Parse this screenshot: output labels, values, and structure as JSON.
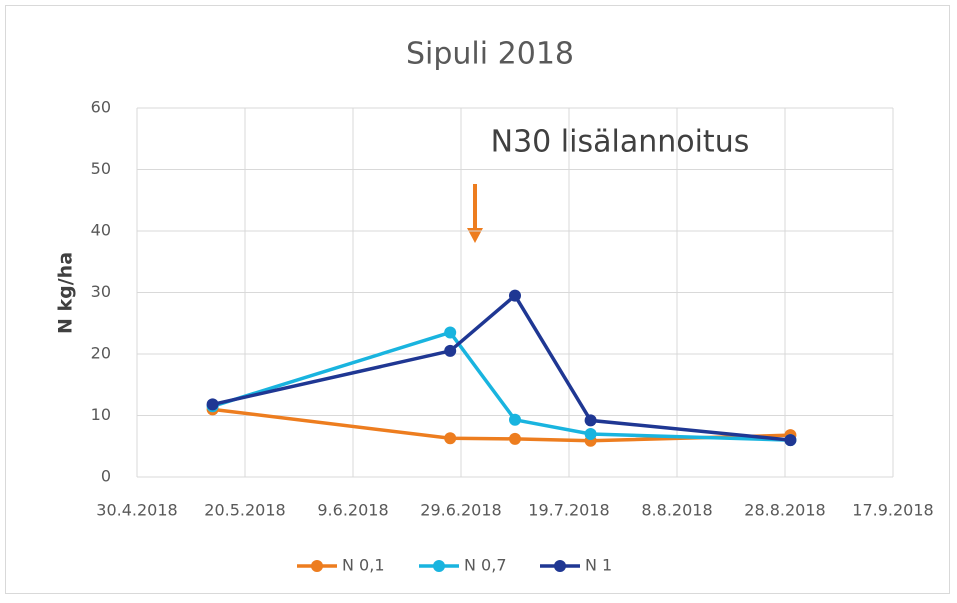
{
  "chart_data": {
    "type": "line",
    "title": "Sipuli 2018",
    "ylabel": "N kg/ha",
    "annotation": "N30 lisälannoitus",
    "x": [
      "14.5.2018",
      "27.6.2018",
      "9.7.2018",
      "23.7.2018",
      "29.8.2018"
    ],
    "series": [
      {
        "name": "N 0,1",
        "color": "#ed7d1f",
        "values": [
          11,
          6.3,
          6.2,
          5.9,
          6.8
        ]
      },
      {
        "name": "N 0,7",
        "color": "#19b4df",
        "values": [
          11.5,
          23.5,
          9.3,
          7,
          6
        ]
      },
      {
        "name": "N 1",
        "color": "#1f3793",
        "values": [
          11.8,
          20.5,
          29.5,
          9.2,
          6
        ]
      }
    ],
    "xlim": [
      "30.4.2018",
      "17.9.2018"
    ],
    "xticks": [
      "30.4.2018",
      "20.5.2018",
      "9.6.2018",
      "29.6.2018",
      "19.7.2018",
      "8.8.2018",
      "28.8.2018",
      "17.9.2018"
    ],
    "ylim": [
      0,
      60
    ],
    "yticks": [
      0,
      10,
      20,
      30,
      40,
      50,
      60
    ],
    "grid": true,
    "legend": "bottom"
  }
}
